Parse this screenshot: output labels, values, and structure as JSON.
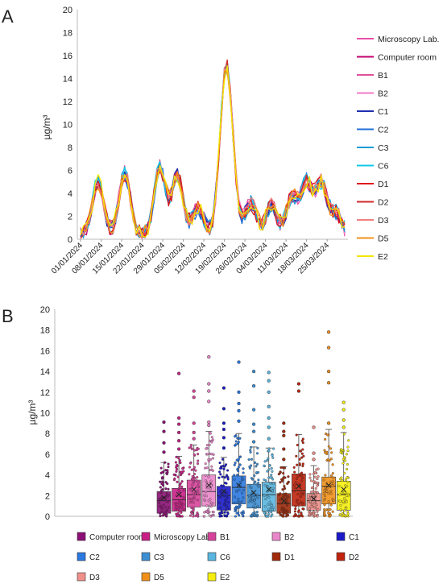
{
  "panels": {
    "a_label": "A",
    "b_label": "B"
  },
  "chart_data": [
    {
      "type": "line",
      "panel": "A",
      "ylabel": "µg/m³",
      "ylim": [
        0,
        20
      ],
      "yticks": [
        0,
        2,
        4,
        6,
        8,
        10,
        12,
        14,
        16,
        18,
        20
      ],
      "x_tick_labels": [
        "01/01/2024",
        "08/01/2024",
        "15/01/2024",
        "22/01/2024",
        "29/01/2024",
        "05/02/2024",
        "12/02/2024",
        "19/02/2024",
        "26/02/2024",
        "04/03/2024",
        "11/03/2024",
        "18/03/2024",
        "25/03/2024"
      ],
      "x_days": 90,
      "grid": false,
      "legend_position": "right",
      "series": [
        {
          "name": "Microscopy Lab.",
          "color": "#e94fa8"
        },
        {
          "name": "Computer room",
          "color": "#c4006e"
        },
        {
          "name": "B1",
          "color": "#e0509c"
        },
        {
          "name": "B2",
          "color": "#f07ac8"
        },
        {
          "name": "C1",
          "color": "#1f2fb0"
        },
        {
          "name": "C2",
          "color": "#1f6fd8"
        },
        {
          "name": "C3",
          "color": "#1c9bd6"
        },
        {
          "name": "C6",
          "color": "#12c8e8"
        },
        {
          "name": "D1",
          "color": "#e0101a"
        },
        {
          "name": "D2",
          "color": "#d42a2a"
        },
        {
          "name": "D3",
          "color": "#f08080"
        },
        {
          "name": "D5",
          "color": "#f2901a"
        },
        {
          "name": "E2",
          "color": "#f2e600"
        }
      ]
    },
    {
      "type": "box",
      "panel": "B",
      "ylabel": "µg/m³",
      "ylim": [
        0,
        20
      ],
      "yticks": [
        0,
        2,
        4,
        6,
        8,
        10,
        12,
        14,
        16,
        18,
        20
      ],
      "grid": false,
      "legend_position": "bottom",
      "categories": [
        "Computer room",
        "Microscopy Lab.",
        "B1",
        "B2",
        "C1",
        "C2",
        "C3",
        "C6",
        "D1",
        "D2",
        "D3",
        "D5",
        "E2"
      ],
      "colors": [
        "#8c0f75",
        "#c81f86",
        "#d6439a",
        "#e987c9",
        "#1a1ac8",
        "#2a78e0",
        "#3d8fd4",
        "#5ab6e0",
        "#a02a0a",
        "#c0230d",
        "#f0908a",
        "#f0901a",
        "#f5ee10"
      ],
      "boxes": [
        {
          "q1": 0.3,
          "median": 1.5,
          "q3": 2.4,
          "mean": 1.8,
          "whisker_low": 0.0,
          "whisker_high": 5.2,
          "outliers": [
            6.2,
            7.1,
            8.2,
            9.1
          ]
        },
        {
          "q1": 0.5,
          "median": 1.6,
          "q3": 2.7,
          "mean": 2.1,
          "whisker_low": 0.0,
          "whisker_high": 5.8,
          "outliers": [
            6.5,
            7.3,
            8.1,
            8.9,
            9.5,
            13.8
          ]
        },
        {
          "q1": 0.9,
          "median": 2.1,
          "q3": 3.5,
          "mean": 2.6,
          "whisker_low": 0.0,
          "whisker_high": 6.9,
          "outliers": [
            7.5,
            8.1,
            9.0,
            11.5,
            12.1
          ]
        },
        {
          "q1": 1.0,
          "median": 2.4,
          "q3": 4.0,
          "mean": 3.0,
          "whisker_low": 0.0,
          "whisker_high": 8.2,
          "outliers": [
            8.8,
            9.1,
            11.1,
            12.1,
            12.8,
            15.4
          ]
        },
        {
          "q1": 0.6,
          "median": 2.0,
          "q3": 2.9,
          "mean": 2.4,
          "whisker_low": 0.0,
          "whisker_high": 5.7,
          "outliers": [
            6.6,
            7.6,
            8.4,
            9.0,
            10.4,
            12.4
          ]
        },
        {
          "q1": 1.2,
          "median": 2.8,
          "q3": 3.9,
          "mean": 3.0,
          "whisker_low": 0.0,
          "whisker_high": 8.0,
          "outliers": [
            9.2,
            10.2,
            10.9,
            12.0,
            14.9
          ]
        },
        {
          "q1": 0.8,
          "median": 2.0,
          "q3": 3.1,
          "mean": 2.3,
          "whisker_low": 0.0,
          "whisker_high": 6.7,
          "outliers": [
            7.2,
            8.2,
            8.9,
            10.3,
            12.6,
            14.0
          ]
        },
        {
          "q1": 0.5,
          "median": 2.1,
          "q3": 3.3,
          "mean": 2.6,
          "whisker_low": 0.0,
          "whisker_high": 6.6,
          "outliers": [
            7.5,
            8.6,
            9.5,
            10.6,
            12.0,
            13.1,
            13.9
          ]
        },
        {
          "q1": 0.3,
          "median": 1.2,
          "q3": 2.2,
          "mean": 1.5,
          "whisker_low": 0.0,
          "whisker_high": 4.8,
          "outliers": [
            5.5,
            6.5,
            7.8,
            8.2,
            9.0
          ]
        },
        {
          "q1": 1.0,
          "median": 2.5,
          "q3": 4.1,
          "mean": 2.9,
          "whisker_low": 0.0,
          "whisker_high": 7.9,
          "outliers": [
            12.1,
            12.8
          ]
        },
        {
          "q1": 0.6,
          "median": 1.5,
          "q3": 2.2,
          "mean": 1.7,
          "whisker_low": 0.0,
          "whisker_high": 4.9,
          "outliers": [
            5.5,
            6.1,
            8.6
          ]
        },
        {
          "q1": 1.2,
          "median": 2.9,
          "q3": 3.8,
          "mean": 3.0,
          "whisker_low": 0.0,
          "whisker_high": 8.4,
          "outliers": [
            9.0,
            12.9,
            14.0,
            16.3,
            17.8
          ]
        },
        {
          "q1": 0.6,
          "median": 2.1,
          "q3": 3.4,
          "mean": 2.6,
          "whisker_low": 0.0,
          "whisker_high": 8.1,
          "outliers": [
            8.6,
            9.3,
            10.3,
            11.0
          ]
        }
      ]
    }
  ]
}
